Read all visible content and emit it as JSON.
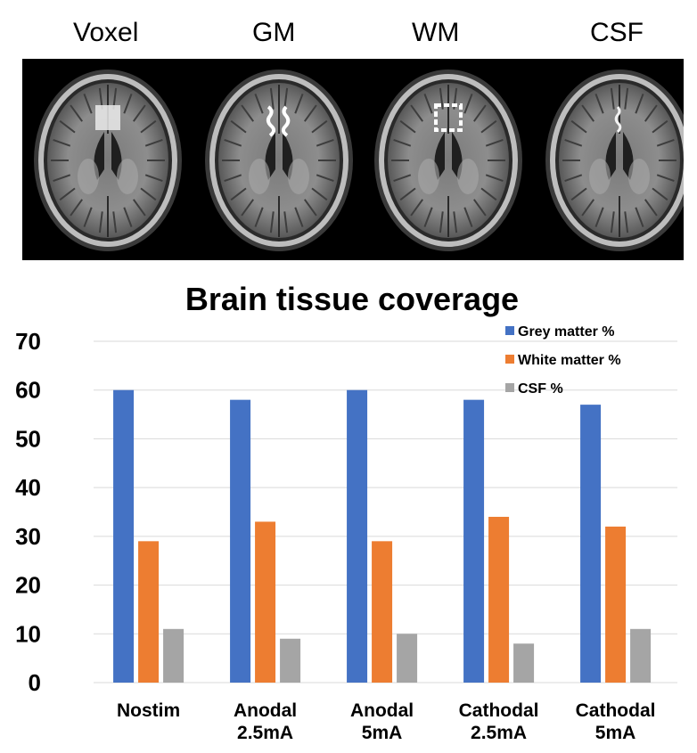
{
  "panels": {
    "labels": [
      "Voxel",
      "GM",
      "WM",
      "CSF"
    ],
    "overlay_colors": [
      "#eaeaea",
      "#ffffff",
      "#ffffff",
      "#f2f2f2"
    ]
  },
  "chart_data": {
    "type": "bar",
    "title": "Brain tissue coverage",
    "categories": [
      [
        "Nostim"
      ],
      [
        "Anodal",
        "2.5mA"
      ],
      [
        "Anodal",
        "5mA"
      ],
      [
        "Cathodal",
        "2.5mA"
      ],
      [
        "Cathodal",
        "5mA"
      ]
    ],
    "series": [
      {
        "name": "Grey matter %",
        "color": "#4472C4",
        "values": [
          60,
          58,
          60,
          58,
          57
        ]
      },
      {
        "name": "White matter %",
        "color": "#ED7D31",
        "values": [
          29,
          33,
          29,
          34,
          32
        ]
      },
      {
        "name": "CSF %",
        "color": "#A5A5A5",
        "values": [
          11,
          9,
          10,
          8,
          11
        ]
      }
    ],
    "yticks": [
      0,
      10,
      20,
      30,
      40,
      50,
      60,
      70
    ],
    "ylim": [
      0,
      70
    ],
    "xlabel": "",
    "ylabel": "",
    "grid": true,
    "legend_position": "top-right"
  }
}
